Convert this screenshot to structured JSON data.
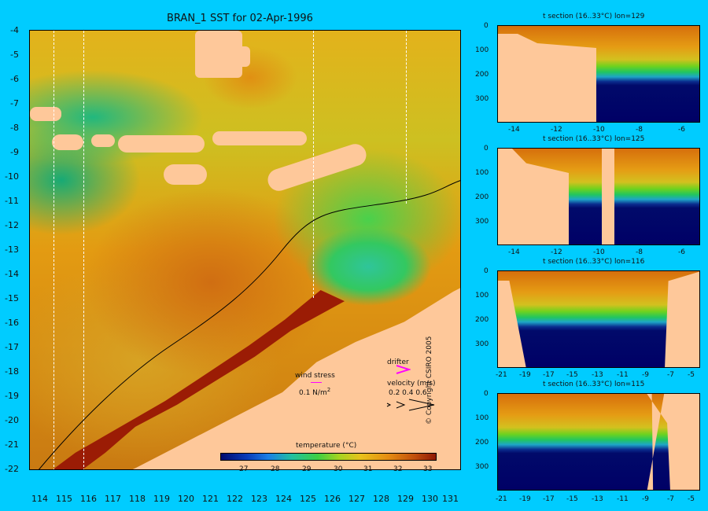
{
  "main_title": "BRAN_1 SST for 02-Apr-1996",
  "map": {
    "y_ticks": [
      "-4",
      "-5",
      "-6",
      "-7",
      "-8",
      "-9",
      "-10",
      "-11",
      "-12",
      "-13",
      "-14",
      "-15",
      "-16",
      "-17",
      "-18",
      "-19",
      "-20",
      "-21",
      "-22"
    ],
    "x_ticks": [
      "114",
      "115",
      "116",
      "117",
      "118",
      "119",
      "120",
      "121",
      "122",
      "123",
      "124",
      "125",
      "126",
      "127",
      "128",
      "129",
      "130",
      "131"
    ]
  },
  "legend": {
    "wind_stress_label": "wind stress",
    "wind_stress_value": "0.1 N/m",
    "wind_stress_sup": "2",
    "drifter_label": "drifter",
    "velocity_label": "velocity (m/s)",
    "velocity_values": "0.2 0.4 0.6",
    "temperature_label": "temperature (°C)",
    "temperature_ticks": [
      "27",
      "28",
      "29",
      "30",
      "31",
      "32",
      "33"
    ]
  },
  "copyright": "© Copyright CSIRO 2005",
  "panels": [
    {
      "title": "t section (16..33°C) lon=129",
      "y_ticks": [
        "0",
        "100",
        "200",
        "300"
      ],
      "x_ticks": [
        "-14",
        "-12",
        "-10",
        "-8",
        "-6"
      ]
    },
    {
      "title": "t section (16..33°C) lon=125",
      "y_ticks": [
        "0",
        "100",
        "200",
        "300"
      ],
      "x_ticks": [
        "-14",
        "-12",
        "-10",
        "-8",
        "-6"
      ]
    },
    {
      "title": "t section (16..33°C) lon=116",
      "y_ticks": [
        "0",
        "100",
        "200",
        "300"
      ],
      "x_ticks": [
        "-21",
        "-19",
        "-17",
        "-15",
        "-13",
        "-11",
        "-9",
        "-7",
        "-5"
      ]
    },
    {
      "title": "t section (16..33°C) lon=115",
      "y_ticks": [
        "0",
        "100",
        "200",
        "300"
      ],
      "x_ticks": [
        "-21",
        "-19",
        "-17",
        "-15",
        "-13",
        "-11",
        "-9",
        "-7",
        "-5"
      ]
    }
  ],
  "colors": {
    "background": "#00ccff",
    "land": "#fec89a",
    "deep_water": "#000066",
    "drifter": "#ff00ff"
  }
}
